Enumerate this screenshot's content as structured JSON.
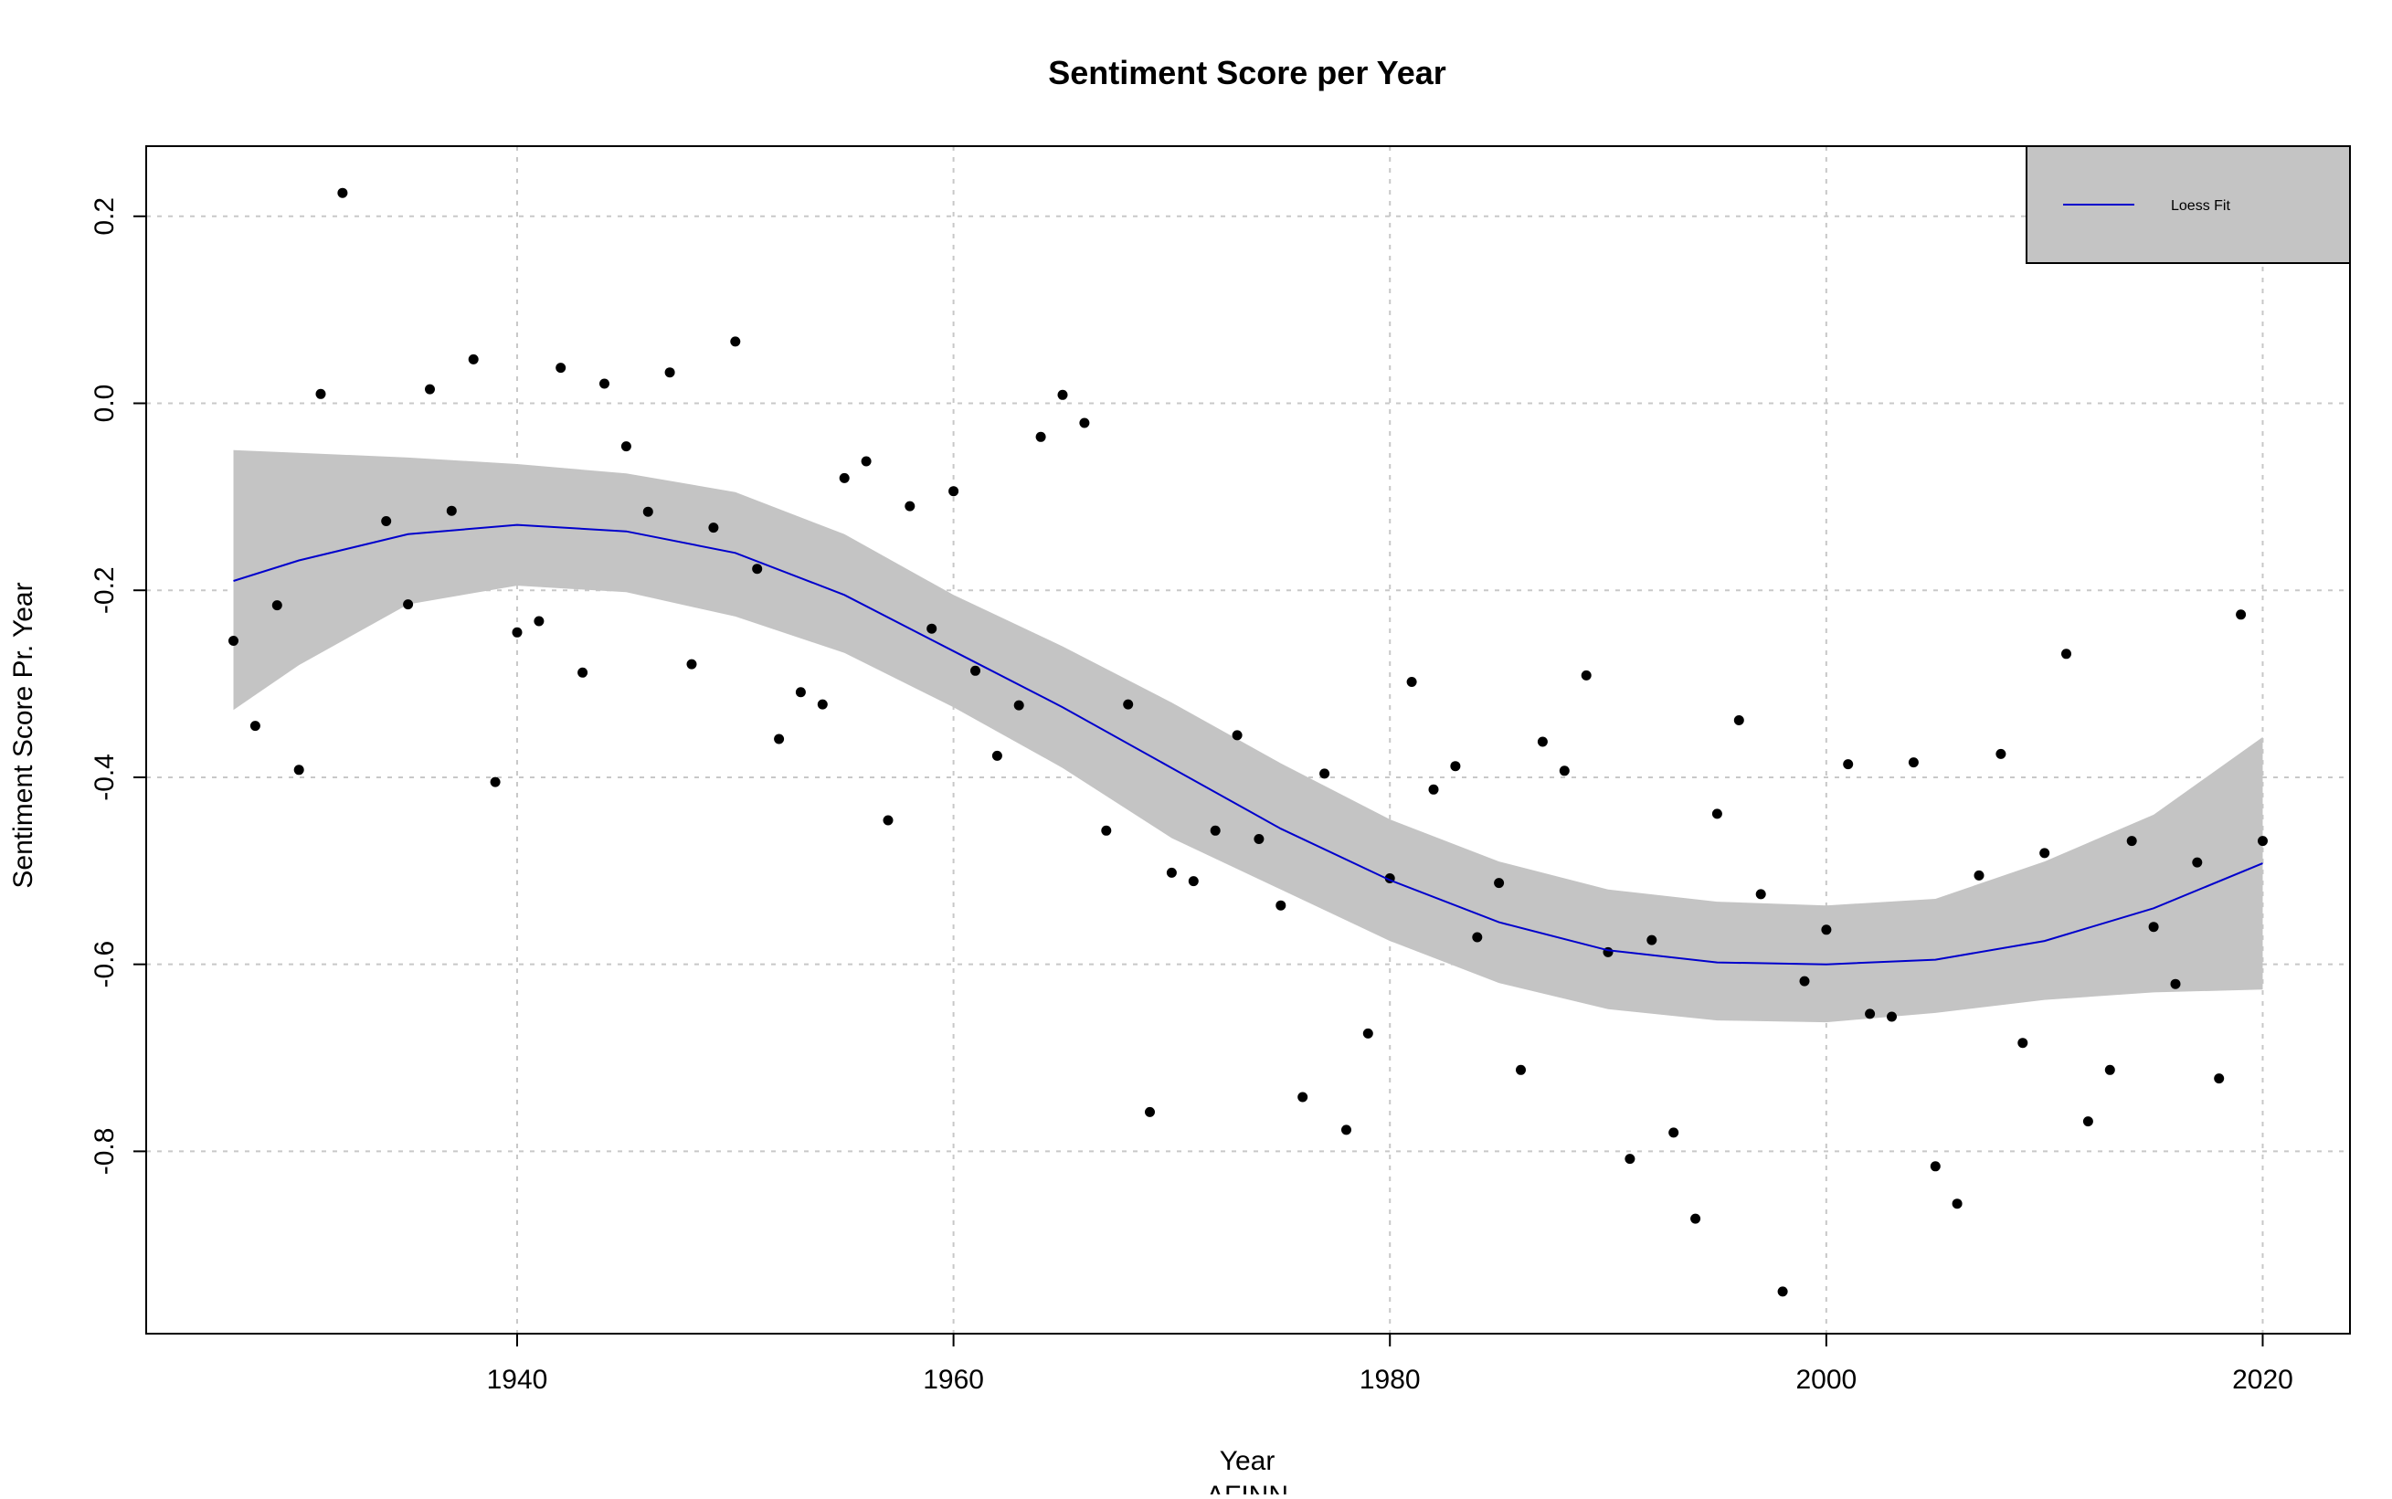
{
  "chart_data": {
    "type": "scatter",
    "title": "Sentiment Score per Year",
    "xlabel": "Year",
    "xlabel2": "AFINN",
    "ylabel": "Sentiment Score Pr. Year",
    "xlim": [
      1923,
      2024
    ],
    "ylim": [
      -0.995,
      0.275
    ],
    "xticks": [
      1940,
      1960,
      1980,
      2000,
      2020
    ],
    "xtick_labels": [
      "1940",
      "1960",
      "1980",
      "2000",
      "2020"
    ],
    "yticks": [
      -0.8,
      -0.6,
      -0.4,
      -0.2,
      0.0,
      0.2
    ],
    "ytick_labels": [
      "-0.8",
      "-0.6",
      "-0.4",
      "-0.2",
      "0.0",
      "0.2"
    ],
    "grid": true,
    "legend": {
      "position": "top-right",
      "entries": [
        "Loess Fit"
      ]
    },
    "colors": {
      "points": "#000000",
      "fit": "#0000cc",
      "band": "#c4c4c4",
      "legend_bg": "#c4c4c4"
    },
    "series": [
      {
        "type": "scatter",
        "x": [
          1927,
          1928,
          1929,
          1930,
          1931,
          1932,
          1934,
          1935,
          1936,
          1937,
          1938,
          1939,
          1940,
          1941,
          1942,
          1943,
          1944,
          1945,
          1946,
          1947,
          1948,
          1949,
          1950,
          1951,
          1952,
          1953,
          1954,
          1955,
          1956,
          1957,
          1958,
          1959,
          1960,
          1961,
          1962,
          1963,
          1964,
          1965,
          1966,
          1967,
          1968,
          1969,
          1970,
          1971,
          1972,
          1973,
          1974,
          1975,
          1976,
          1977,
          1978,
          1979,
          1980,
          1981,
          1982,
          1983,
          1984,
          1985,
          1986,
          1987,
          1988,
          1989,
          1990,
          1991,
          1992,
          1993,
          1994,
          1995,
          1996,
          1997,
          1998,
          1999,
          2000,
          2001,
          2002,
          2003,
          2004,
          2005,
          2006,
          2007,
          2008,
          2009,
          2010,
          2011,
          2012,
          2013,
          2014,
          2015,
          2016,
          2017,
          2018,
          2019,
          2020
        ],
        "y": [
          -0.254,
          -0.345,
          -0.216,
          -0.392,
          0.01,
          0.225,
          -0.126,
          -0.215,
          0.015,
          -0.115,
          0.047,
          -0.405,
          -0.245,
          -0.233,
          0.038,
          -0.288,
          0.021,
          -0.046,
          -0.116,
          0.033,
          -0.279,
          -0.133,
          0.066,
          -0.177,
          -0.359,
          -0.309,
          -0.322,
          -0.08,
          -0.062,
          -0.446,
          -0.11,
          -0.241,
          -0.094,
          -0.286,
          -0.377,
          -0.323,
          -0.036,
          0.009,
          -0.021,
          -0.457,
          -0.322,
          -0.758,
          -0.502,
          -0.511,
          -0.457,
          -0.355,
          -0.466,
          -0.537,
          -0.742,
          -0.396,
          -0.777,
          -0.674,
          -0.508,
          -0.298,
          -0.413,
          -0.388,
          -0.571,
          -0.513,
          -0.713,
          -0.362,
          -0.393,
          -0.291,
          -0.587,
          -0.808,
          -0.574,
          -0.78,
          -0.872,
          -0.439,
          -0.339,
          -0.525,
          -0.95,
          -0.618,
          -0.563,
          -0.386,
          -0.653,
          -0.656,
          -0.384,
          -0.816,
          -0.856,
          -0.505,
          -0.375,
          -0.684,
          -0.481,
          -0.268,
          -0.768,
          -0.713,
          -0.468,
          -0.56,
          -0.621,
          -0.491,
          -0.722,
          -0.226,
          -0.468
        ]
      },
      {
        "name": "Loess Fit",
        "type": "line",
        "x": [
          1927,
          1930,
          1935,
          1940,
          1945,
          1950,
          1955,
          1960,
          1965,
          1970,
          1975,
          1980,
          1985,
          1990,
          1995,
          2000,
          2005,
          2010,
          2015,
          2020
        ],
        "y": [
          -0.19,
          -0.168,
          -0.14,
          -0.13,
          -0.137,
          -0.16,
          -0.205,
          -0.265,
          -0.325,
          -0.39,
          -0.455,
          -0.51,
          -0.555,
          -0.585,
          -0.598,
          -0.6,
          -0.595,
          -0.575,
          -0.54,
          -0.492
        ],
        "lower": [
          -0.328,
          -0.28,
          -0.215,
          -0.195,
          -0.202,
          -0.228,
          -0.267,
          -0.325,
          -0.39,
          -0.465,
          -0.52,
          -0.575,
          -0.62,
          -0.648,
          -0.66,
          -0.662,
          -0.652,
          -0.638,
          -0.63,
          -0.627
        ],
        "upper": [
          -0.05,
          -0.053,
          -0.058,
          -0.065,
          -0.075,
          -0.095,
          -0.14,
          -0.205,
          -0.26,
          -0.32,
          -0.385,
          -0.445,
          -0.49,
          -0.52,
          -0.533,
          -0.537,
          -0.53,
          -0.49,
          -0.44,
          -0.357
        ]
      }
    ]
  }
}
